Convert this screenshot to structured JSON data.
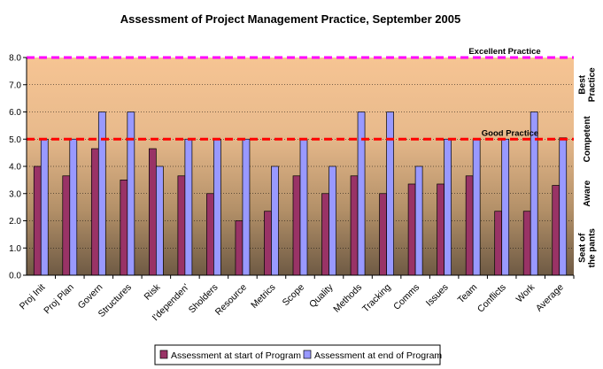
{
  "chart_data": {
    "type": "bar",
    "title": "Assessment of Project Management Practice, September 2005",
    "categories": [
      "Proj Init",
      "Proj Plan",
      "Govern",
      "Structures",
      "Risk",
      "I'dependen'",
      "Sholders",
      "Resource",
      "Metrics",
      "Scope",
      "Quality",
      "Methods",
      "Tracking",
      "Comms",
      "Issues",
      "Team",
      "Conflicts",
      "Work",
      "Average"
    ],
    "series": [
      {
        "name": "Assessment at start of Program",
        "color": "#993366",
        "values": [
          4.0,
          3.65,
          4.65,
          3.5,
          4.65,
          3.65,
          3.0,
          2.0,
          2.35,
          3.65,
          3.0,
          3.65,
          3.0,
          3.35,
          3.35,
          3.65,
          2.35,
          2.35,
          3.3
        ]
      },
      {
        "name": "Assessment at end of Program",
        "color": "#9999FF",
        "values": [
          5.0,
          5.0,
          6.0,
          6.0,
          4.0,
          5.0,
          5.0,
          5.0,
          4.0,
          5.0,
          4.0,
          6.0,
          6.0,
          4.0,
          5.0,
          5.0,
          5.0,
          6.0,
          5.05
        ]
      }
    ],
    "ylim": [
      0,
      8
    ],
    "yticks": [
      "0.0",
      "1.0",
      "2.0",
      "3.0",
      "4.0",
      "5.0",
      "6.0",
      "7.0",
      "8.0"
    ],
    "grid": true,
    "legend": "bottom",
    "reference_lines": [
      {
        "label": "Excellent Practice",
        "value": 8.0,
        "color": "#FF00FF"
      },
      {
        "label": "Good Practice",
        "value": 5.0,
        "color": "#FF0000"
      }
    ],
    "right_labels": [
      {
        "text": "Best Practice",
        "lines": [
          "Best",
          "Practice"
        ],
        "from": 6.0,
        "to": 8.0
      },
      {
        "text": "Competent",
        "lines": [
          "Competent"
        ],
        "from": 4.0,
        "to": 6.0
      },
      {
        "text": "Aware",
        "lines": [
          "Aware"
        ],
        "from": 2.0,
        "to": 4.0
      },
      {
        "text": "Seat of the pants",
        "lines": [
          "Seat of",
          "the pants"
        ],
        "from": 0.0,
        "to": 2.0
      }
    ]
  }
}
